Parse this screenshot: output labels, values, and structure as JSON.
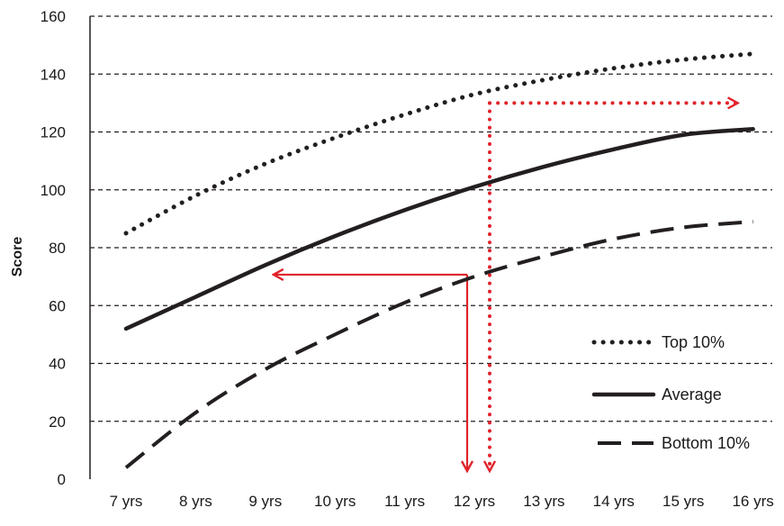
{
  "chart_data": {
    "type": "line",
    "title": "",
    "xlabel": "",
    "ylabel": "Score",
    "categories": [
      "7 yrs",
      "8 yrs",
      "9 yrs",
      "10 yrs",
      "11 yrs",
      "12 yrs",
      "13 yrs",
      "14 yrs",
      "15 yrs",
      "16 yrs"
    ],
    "ylim": [
      0,
      160
    ],
    "yticks": [
      0,
      20,
      40,
      60,
      80,
      100,
      120,
      140,
      160
    ],
    "grid": "horizontal dashed",
    "legend_position": "bottom-right",
    "series": [
      {
        "name": "Top 10%",
        "style": "dotted",
        "color": "#231f20",
        "values": [
          85,
          98,
          109,
          118,
          126,
          133,
          138,
          142,
          145,
          147
        ]
      },
      {
        "name": "Average",
        "style": "solid",
        "color": "#231f20",
        "values": [
          52,
          63,
          74,
          84,
          93,
          101,
          108,
          114,
          119,
          121
        ]
      },
      {
        "name": "Bottom 10%",
        "style": "dashed",
        "color": "#231f20",
        "values": [
          4,
          23,
          38,
          50,
          61,
          70,
          77,
          83,
          87,
          89
        ]
      }
    ],
    "annotations": [
      {
        "type": "red-solid-arrows",
        "color": "#e0232b",
        "from_x": "12 yrs",
        "at_y": 71,
        "to_x": "9 yrs",
        "down_to_y": 0
      },
      {
        "type": "red-dotted-arrows",
        "color": "#e0232b",
        "from_x": "12 yrs",
        "at_y": 130,
        "to_x": "16 yrs",
        "down_to_y": 0
      }
    ]
  }
}
